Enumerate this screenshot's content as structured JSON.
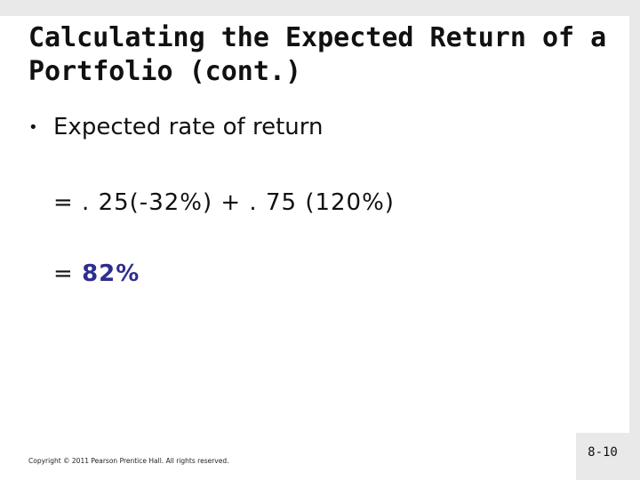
{
  "title": "Calculating the Expected Return of a Portfolio (cont.)",
  "bullet": "Expected rate of return",
  "formula": "= . 25(-32%) + . 75 (120%)",
  "result": {
    "equals": "=",
    "value": "82%"
  },
  "footer": {
    "copyright": "Copyright © 2011 Pearson Prentice Hall. All rights reserved.",
    "page": "8-10"
  }
}
